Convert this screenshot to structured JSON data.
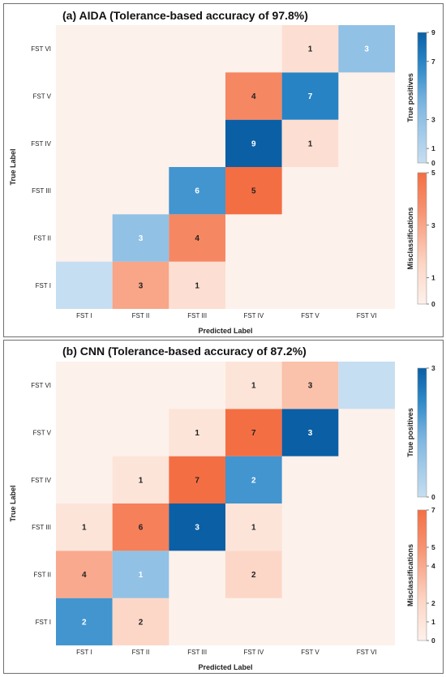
{
  "chart_data": [
    {
      "type": "heatmap",
      "title": "(a) AIDA (Tolerance-based accuracy of 97.8%)",
      "xlabel": "Predicted Label",
      "ylabel": "True Label",
      "x_categories": [
        "FST I",
        "FST II",
        "FST III",
        "FST IV",
        "FST V",
        "FST VI"
      ],
      "y_categories": [
        "FST I",
        "FST II",
        "FST III",
        "FST IV",
        "FST V",
        "FST VI"
      ],
      "cells": [
        {
          "true": "FST I",
          "pred": "FST I",
          "value": 0,
          "kind": "tp"
        },
        {
          "true": "FST I",
          "pred": "FST II",
          "value": 3,
          "kind": "mis"
        },
        {
          "true": "FST I",
          "pred": "FST III",
          "value": 1,
          "kind": "mis"
        },
        {
          "true": "FST II",
          "pred": "FST II",
          "value": 3,
          "kind": "tp"
        },
        {
          "true": "FST II",
          "pred": "FST III",
          "value": 4,
          "kind": "mis"
        },
        {
          "true": "FST III",
          "pred": "FST III",
          "value": 6,
          "kind": "tp"
        },
        {
          "true": "FST III",
          "pred": "FST IV",
          "value": 5,
          "kind": "mis"
        },
        {
          "true": "FST IV",
          "pred": "FST IV",
          "value": 9,
          "kind": "tp"
        },
        {
          "true": "FST IV",
          "pred": "FST V",
          "value": 1,
          "kind": "mis"
        },
        {
          "true": "FST V",
          "pred": "FST IV",
          "value": 4,
          "kind": "mis"
        },
        {
          "true": "FST V",
          "pred": "FST V",
          "value": 7,
          "kind": "tp"
        },
        {
          "true": "FST VI",
          "pred": "FST V",
          "value": 1,
          "kind": "mis"
        },
        {
          "true": "FST VI",
          "pred": "FST VI",
          "value": 3,
          "kind": "tp"
        }
      ],
      "colorbars": [
        {
          "label": "True positives",
          "scheme": "blues",
          "range": [
            0,
            9
          ],
          "ticks": [
            "0",
            "1",
            "3",
            "7",
            "9"
          ]
        },
        {
          "label": "Misclassifications",
          "scheme": "oranges",
          "range": [
            0,
            5
          ],
          "ticks": [
            "0",
            "1",
            "3",
            "5"
          ]
        }
      ]
    },
    {
      "type": "heatmap",
      "title": "(b) CNN (Tolerance-based accuracy of 87.2%)",
      "xlabel": "Predicted Label",
      "ylabel": "True Label",
      "x_categories": [
        "FST I",
        "FST II",
        "FST III",
        "FST IV",
        "FST V",
        "FST VI"
      ],
      "y_categories": [
        "FST I",
        "FST II",
        "FST III",
        "FST IV",
        "FST V",
        "FST VI"
      ],
      "cells": [
        {
          "true": "FST I",
          "pred": "FST I",
          "value": 2,
          "kind": "tp"
        },
        {
          "true": "FST I",
          "pred": "FST II",
          "value": 2,
          "kind": "mis"
        },
        {
          "true": "FST II",
          "pred": "FST I",
          "value": 4,
          "kind": "mis"
        },
        {
          "true": "FST II",
          "pred": "FST II",
          "value": 1,
          "kind": "tp"
        },
        {
          "true": "FST II",
          "pred": "FST IV",
          "value": 2,
          "kind": "mis"
        },
        {
          "true": "FST III",
          "pred": "FST I",
          "value": 1,
          "kind": "mis"
        },
        {
          "true": "FST III",
          "pred": "FST II",
          "value": 6,
          "kind": "mis"
        },
        {
          "true": "FST III",
          "pred": "FST III",
          "value": 3,
          "kind": "tp"
        },
        {
          "true": "FST III",
          "pred": "FST IV",
          "value": 1,
          "kind": "mis"
        },
        {
          "true": "FST IV",
          "pred": "FST II",
          "value": 1,
          "kind": "mis"
        },
        {
          "true": "FST IV",
          "pred": "FST III",
          "value": 7,
          "kind": "mis"
        },
        {
          "true": "FST IV",
          "pred": "FST IV",
          "value": 2,
          "kind": "tp"
        },
        {
          "true": "FST V",
          "pred": "FST III",
          "value": 1,
          "kind": "mis"
        },
        {
          "true": "FST V",
          "pred": "FST IV",
          "value": 7,
          "kind": "mis"
        },
        {
          "true": "FST V",
          "pred": "FST V",
          "value": 3,
          "kind": "tp"
        },
        {
          "true": "FST VI",
          "pred": "FST IV",
          "value": 1,
          "kind": "mis"
        },
        {
          "true": "FST VI",
          "pred": "FST V",
          "value": 3,
          "kind": "mis"
        },
        {
          "true": "FST VI",
          "pred": "FST VI",
          "value": 0,
          "kind": "tp"
        }
      ],
      "colorbars": [
        {
          "label": "True positives",
          "scheme": "blues",
          "range": [
            0,
            3
          ],
          "ticks": [
            "0",
            "3"
          ]
        },
        {
          "label": "Misclassifications",
          "scheme": "oranges",
          "range": [
            0,
            7
          ],
          "ticks": [
            "0",
            "1",
            "2",
            "4",
            "5",
            "7"
          ]
        }
      ]
    }
  ]
}
